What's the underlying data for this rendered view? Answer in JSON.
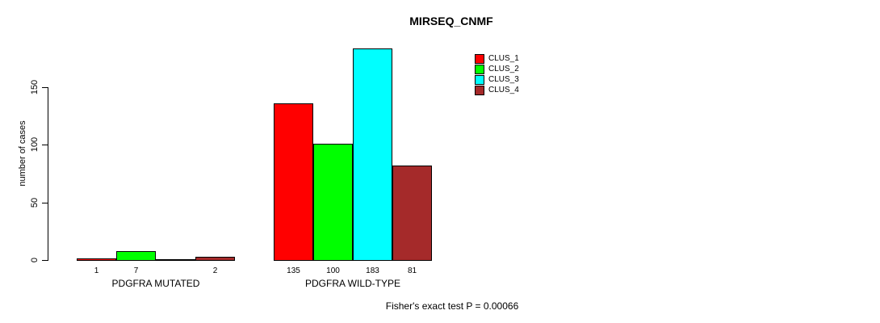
{
  "title": "MIRSEQ_CNMF",
  "chart_data": {
    "type": "bar",
    "title": "MIRSEQ_CNMF",
    "ylabel": "number of cases",
    "xlabel": "",
    "ylim": [
      0,
      183
    ],
    "yticks": [
      0,
      50,
      100,
      150
    ],
    "ytick_labels": [
      "0",
      "50",
      "100",
      "150"
    ],
    "grid": false,
    "legend_position": "top-right",
    "categories": [
      "PDGFRA MUTATED",
      "PDGFRA WILD-TYPE"
    ],
    "series": [
      {
        "name": "CLUS_1",
        "color": "#FF0000",
        "values": [
          1,
          135
        ]
      },
      {
        "name": "CLUS_2",
        "color": "#00FF00",
        "values": [
          7,
          100
        ]
      },
      {
        "name": "CLUS_3",
        "color": "#00FFFF",
        "values": [
          0,
          183
        ]
      },
      {
        "name": "CLUS_4",
        "color": "#A52A2A",
        "values": [
          2,
          81
        ]
      }
    ],
    "bar_value_labels": [
      [
        "1",
        "7",
        "",
        "2"
      ],
      [
        "135",
        "100",
        "183",
        "81"
      ]
    ],
    "annotation": "Fisher's exact test P = 0.00066",
    "bar_border_color": "#000000",
    "axis_color": "#000000",
    "background_color": "#FFFFFF"
  }
}
